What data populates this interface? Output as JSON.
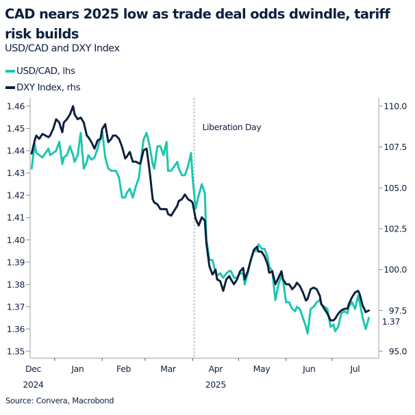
{
  "title": "CAD nears 2025 low as trade deal odds dwindle, tariff risk builds",
  "subtitle": "USD/CAD and DXY Index",
  "source": "Source: Convera, Macrobond",
  "colors": {
    "usdcad": "#1cc6ad",
    "dxy": "#0d1f3c",
    "axis": "#b0b0b0",
    "annotation_line": "#9a9a9a"
  },
  "legend": [
    {
      "label": "USD/CAD, lhs",
      "color": "#1cc6ad"
    },
    {
      "label": "DXY Index, rhs",
      "color": "#0d1f3c"
    }
  ],
  "chart_data": {
    "type": "line",
    "title": "CAD nears 2025 low as trade deal odds dwindle, tariff risk builds",
    "subtitle": "USD/CAD and DXY Index",
    "x_range": [
      "2024-12-16",
      "2025-07-31"
    ],
    "x_tick_labels": [
      {
        "label": "Dec",
        "year": "2024",
        "date": "2024-12-18"
      },
      {
        "label": "Jan",
        "date": "2025-01-16"
      },
      {
        "label": "Feb",
        "date": "2025-02-15"
      },
      {
        "label": "Mar",
        "date": "2025-03-16"
      },
      {
        "label": "Apr",
        "year": "2025",
        "date": "2025-04-16"
      },
      {
        "label": "May",
        "date": "2025-05-16"
      },
      {
        "label": "Jun",
        "date": "2025-06-16"
      },
      {
        "label": "Jul",
        "date": "2025-07-16"
      }
    ],
    "x_ticks": [
      "2025-01-01",
      "2025-02-01",
      "2025-03-01",
      "2025-04-01",
      "2025-05-01",
      "2025-06-01",
      "2025-07-01"
    ],
    "left_axis": {
      "range": [
        1.35,
        1.46
      ],
      "ticks": [
        "1.35",
        "1.36",
        "1.37",
        "1.38",
        "1.39",
        "1.40",
        "1.41",
        "1.42",
        "1.43",
        "1.44",
        "1.45",
        "1.46"
      ]
    },
    "right_axis": {
      "range": [
        95.0,
        110.0
      ],
      "ticks": [
        "95.0",
        "97.5",
        "100.0",
        "102.5",
        "105.0",
        "107.5",
        "110.0"
      ]
    },
    "grid": false,
    "legend_position": "top-left",
    "annotations": [
      {
        "label": "Liberation Day",
        "date": "2025-04-02",
        "style": "dotted vertical line"
      }
    ],
    "last_value_label": {
      "series": "USD/CAD, lhs",
      "label": "1.37"
    },
    "dates": [
      "2024-12-17",
      "2024-12-19",
      "2024-12-20",
      "2024-12-22",
      "2024-12-24",
      "2024-12-26",
      "2024-12-28",
      "2024-12-29",
      "2024-12-31",
      "2025-01-02",
      "2025-01-04",
      "2025-01-06",
      "2025-01-07",
      "2025-01-09",
      "2025-01-11",
      "2025-01-13",
      "2025-01-14",
      "2025-01-16",
      "2025-01-18",
      "2025-01-20",
      "2025-01-22",
      "2025-01-23",
      "2025-01-25",
      "2025-01-27",
      "2025-01-29",
      "2025-01-31",
      "2025-02-01",
      "2025-02-03",
      "2025-02-05",
      "2025-02-07",
      "2025-02-08",
      "2025-02-10",
      "2025-02-12",
      "2025-02-14",
      "2025-02-16",
      "2025-02-17",
      "2025-02-19",
      "2025-02-21",
      "2025-02-23",
      "2025-02-25",
      "2025-02-26",
      "2025-02-28",
      "2025-03-02",
      "2025-03-04",
      "2025-03-06",
      "2025-03-07",
      "2025-03-09",
      "2025-03-11",
      "2025-03-13",
      "2025-03-15",
      "2025-03-16",
      "2025-03-18",
      "2025-03-20",
      "2025-03-22",
      "2025-03-23",
      "2025-03-25",
      "2025-03-27",
      "2025-03-29",
      "2025-03-31",
      "2025-04-01",
      "2025-04-03",
      "2025-04-05",
      "2025-04-07",
      "2025-04-09",
      "2025-04-10",
      "2025-04-12",
      "2025-04-14",
      "2025-04-16",
      "2025-04-17",
      "2025-04-19",
      "2025-04-21",
      "2025-04-23",
      "2025-04-25",
      "2025-04-26",
      "2025-04-28",
      "2025-04-30",
      "2025-05-02",
      "2025-05-04",
      "2025-05-05",
      "2025-05-07",
      "2025-05-09",
      "2025-05-11",
      "2025-05-13",
      "2025-05-14",
      "2025-05-16",
      "2025-05-18",
      "2025-05-20",
      "2025-05-21",
      "2025-05-23",
      "2025-05-25",
      "2025-05-27",
      "2025-05-29",
      "2025-05-30",
      "2025-06-01",
      "2025-06-03",
      "2025-06-05",
      "2025-06-07",
      "2025-06-08",
      "2025-06-10",
      "2025-06-12",
      "2025-06-14",
      "2025-06-15",
      "2025-06-17",
      "2025-06-19",
      "2025-06-21",
      "2025-06-23",
      "2025-06-24",
      "2025-06-26",
      "2025-06-28",
      "2025-06-30",
      "2025-07-02",
      "2025-07-03",
      "2025-07-05",
      "2025-07-07",
      "2025-07-09",
      "2025-07-11",
      "2025-07-12",
      "2025-07-14",
      "2025-07-16",
      "2025-07-18",
      "2025-07-19",
      "2025-07-21",
      "2025-07-23",
      "2025-07-25"
    ],
    "series": [
      {
        "name": "USD/CAD, lhs",
        "axis": "left",
        "values": [
          1.432,
          1.443,
          1.439,
          1.438,
          1.437,
          1.439,
          1.441,
          1.438,
          1.439,
          1.44,
          1.444,
          1.434,
          1.437,
          1.438,
          1.442,
          1.438,
          1.435,
          1.438,
          1.448,
          1.432,
          1.435,
          1.438,
          1.436,
          1.437,
          1.441,
          1.446,
          1.449,
          1.437,
          1.432,
          1.431,
          1.431,
          1.431,
          1.428,
          1.419,
          1.419,
          1.421,
          1.423,
          1.419,
          1.424,
          1.428,
          1.434,
          1.445,
          1.448,
          1.442,
          1.434,
          1.432,
          1.442,
          1.442,
          1.438,
          1.444,
          1.431,
          1.431,
          1.433,
          1.435,
          1.432,
          1.429,
          1.429,
          1.433,
          1.439,
          1.428,
          1.414,
          1.42,
          1.425,
          1.421,
          1.4,
          1.391,
          1.391,
          1.385,
          1.384,
          1.385,
          1.383,
          1.385,
          1.386,
          1.386,
          1.383,
          1.383,
          1.385,
          1.385,
          1.38,
          1.385,
          1.391,
          1.395,
          1.395,
          1.398,
          1.396,
          1.396,
          1.392,
          1.388,
          1.386,
          1.373,
          1.38,
          1.384,
          1.382,
          1.372,
          1.372,
          1.369,
          1.368,
          1.37,
          1.369,
          1.365,
          1.361,
          1.358,
          1.369,
          1.37,
          1.372,
          1.373,
          1.371,
          1.37,
          1.369,
          1.361,
          1.362,
          1.359,
          1.361,
          1.367,
          1.368,
          1.367,
          1.37,
          1.372,
          1.369,
          1.375,
          1.372,
          1.365,
          1.36,
          1.365
        ]
      },
      {
        "name": "DXY Index, rhs",
        "axis": "right",
        "values": [
          107.1,
          107.9,
          108.2,
          108.0,
          108.3,
          108.2,
          108.1,
          108.2,
          108.6,
          109.2,
          109.0,
          108.4,
          109.0,
          109.2,
          109.5,
          110.0,
          109.5,
          109.2,
          109.3,
          109.0,
          108.2,
          108.1,
          107.8,
          107.4,
          107.9,
          108.0,
          108.6,
          108.9,
          107.8,
          108.0,
          108.2,
          108.2,
          108.0,
          107.5,
          106.8,
          106.9,
          107.2,
          106.6,
          106.6,
          106.5,
          106.5,
          107.3,
          107.4,
          106.0,
          104.3,
          104.1,
          104.0,
          103.7,
          103.7,
          103.7,
          103.4,
          103.3,
          103.6,
          103.9,
          104.2,
          104.3,
          104.6,
          104.3,
          104.2,
          104.1,
          103.1,
          102.7,
          103.2,
          103.0,
          101.6,
          100.2,
          99.7,
          100.0,
          99.4,
          99.3,
          98.7,
          99.4,
          99.6,
          99.4,
          99.1,
          99.4,
          99.9,
          100.1,
          99.4,
          99.9,
          100.6,
          101.2,
          101.4,
          101.1,
          101.1,
          100.8,
          100.3,
          99.8,
          99.9,
          99.1,
          99.5,
          99.9,
          99.4,
          99.1,
          99.1,
          98.8,
          99.0,
          99.2,
          99.0,
          98.6,
          98.1,
          98.2,
          98.8,
          98.9,
          98.8,
          98.4,
          97.9,
          97.6,
          97.3,
          96.9,
          96.9,
          97.0,
          97.3,
          97.5,
          97.6,
          97.6,
          97.9,
          98.3,
          98.6,
          98.7,
          98.5,
          97.8,
          97.4,
          97.5
        ]
      }
    ]
  }
}
